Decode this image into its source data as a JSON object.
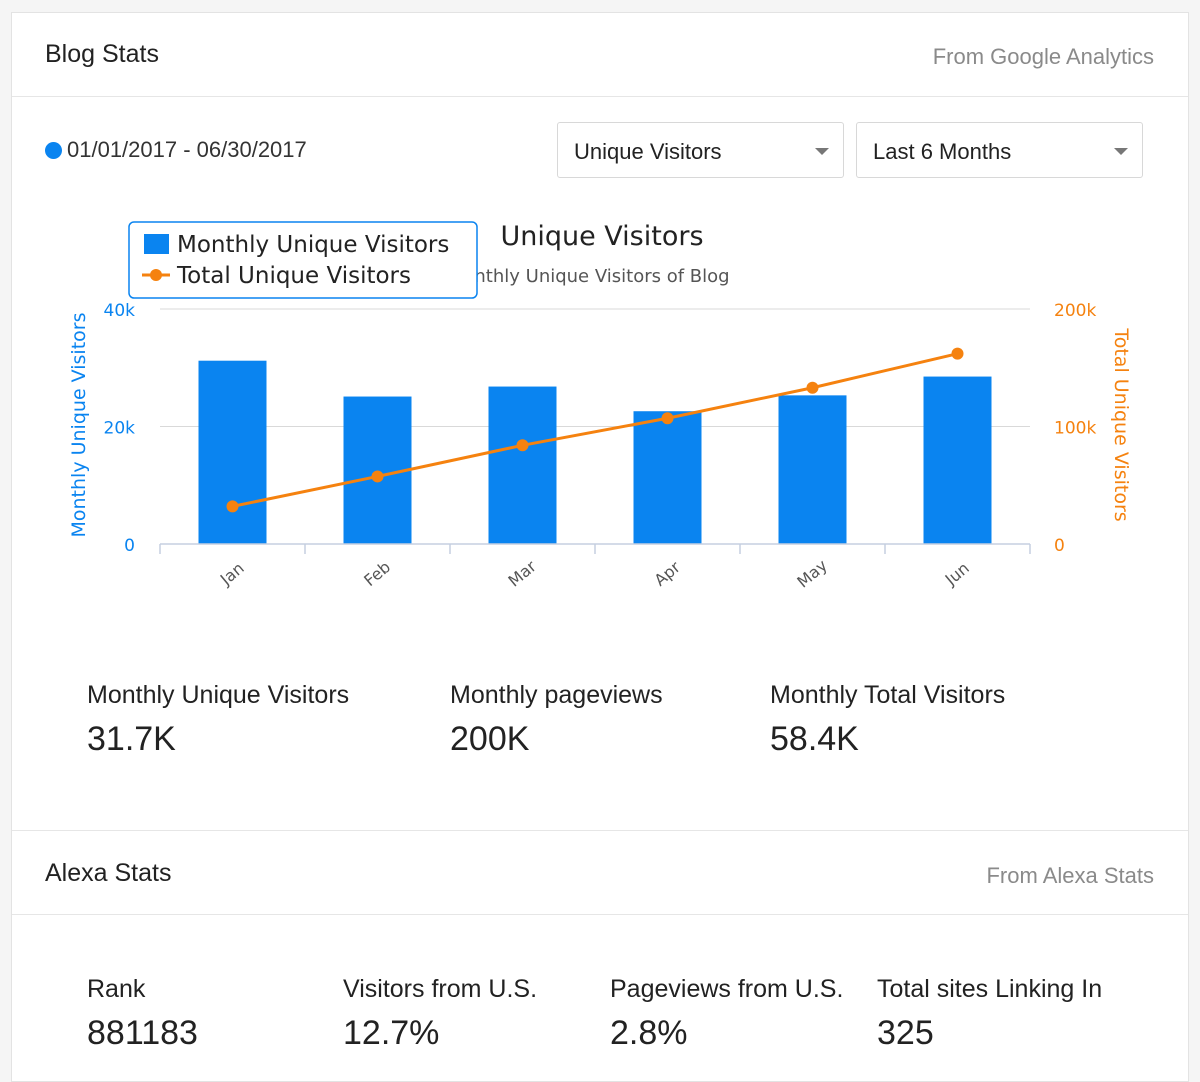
{
  "blog": {
    "title": "Blog Stats",
    "source": "From Google Analytics",
    "date_range": "01/01/2017 - 06/30/2017",
    "metric_select": "Unique Visitors",
    "period_select": "Last 6 Months"
  },
  "chart_data": {
    "type": "bar",
    "title": "Unique Visitors",
    "subtitle": "nthly Unique Visitors of Blog",
    "categories": [
      "Jan",
      "Feb",
      "Mar",
      "Apr",
      "May",
      "Jun"
    ],
    "series": [
      {
        "name": "Monthly Unique Visitors",
        "type": "bar",
        "axis": "left",
        "color": "#0a84f0",
        "values": [
          31200,
          25100,
          26800,
          22600,
          25300,
          28500
        ]
      },
      {
        "name": "Total Unique Visitors",
        "type": "line",
        "axis": "right",
        "color": "#f5820f",
        "values": [
          32000,
          57500,
          84000,
          107000,
          133000,
          162000
        ]
      }
    ],
    "ylabel": "Monthly Unique Visitors",
    "y2label": "Total Unique Visitors",
    "ylim": [
      0,
      40000
    ],
    "y2lim": [
      0,
      200000
    ],
    "yticks": [
      "0",
      "20k",
      "40k"
    ],
    "y2ticks": [
      "0",
      "100k",
      "200k"
    ],
    "legend_position": "top-left",
    "grid": true
  },
  "blog_stats": [
    {
      "label": "Monthly Unique Visitors",
      "value": "31.7K"
    },
    {
      "label": "Monthly pageviews",
      "value": "200K"
    },
    {
      "label": "Monthly Total Visitors",
      "value": "58.4K"
    }
  ],
  "alexa": {
    "title": "Alexa Stats",
    "source": "From Alexa Stats",
    "stats": [
      {
        "label": "Rank",
        "value": "881183"
      },
      {
        "label": "Visitors from U.S.",
        "value": "12.7%"
      },
      {
        "label": "Pageviews from U.S.",
        "value": "2.8%"
      },
      {
        "label": "Total sites Linking In",
        "value": "325"
      }
    ]
  }
}
